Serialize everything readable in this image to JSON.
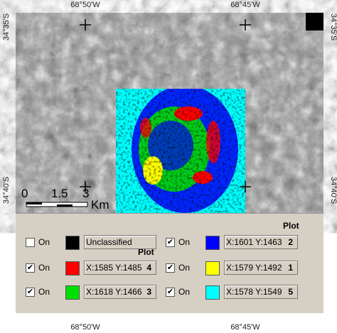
{
  "coordinates": {
    "top": [
      "68°50'W",
      "68°45'W"
    ],
    "bottom": [
      "68°50'W",
      "68°45'W"
    ],
    "left": [
      "34°35'S",
      "34°40'S"
    ],
    "right": [
      "34°35'S",
      "34°40'S"
    ]
  },
  "scale_bar": {
    "labels": [
      "0",
      "1.5",
      "3"
    ],
    "unit": "Km"
  },
  "legend": {
    "plot_headings": [
      "Plot",
      "Plot"
    ],
    "entries": [
      {
        "checked": false,
        "toggle": "On",
        "color": "#000000",
        "label": "Unclassified"
      },
      {
        "checked": true,
        "toggle": "On",
        "color": "#ff0000",
        "label": "X:1585 Y:1485",
        "plot": 4
      },
      {
        "checked": true,
        "toggle": "On",
        "color": "#00e000",
        "label": "X:1618 Y:1466",
        "plot": 3
      },
      {
        "checked": true,
        "toggle": "On",
        "color": "#0000ff",
        "label": "X:1601 Y:1463",
        "plot": 2
      },
      {
        "checked": true,
        "toggle": "On",
        "color": "#ffff00",
        "label": "X:1579 Y:1492",
        "plot": 1
      },
      {
        "checked": true,
        "toggle": "On",
        "color": "#00ffff",
        "label": "X:1578 Y:1549",
        "plot": 5
      }
    ]
  }
}
